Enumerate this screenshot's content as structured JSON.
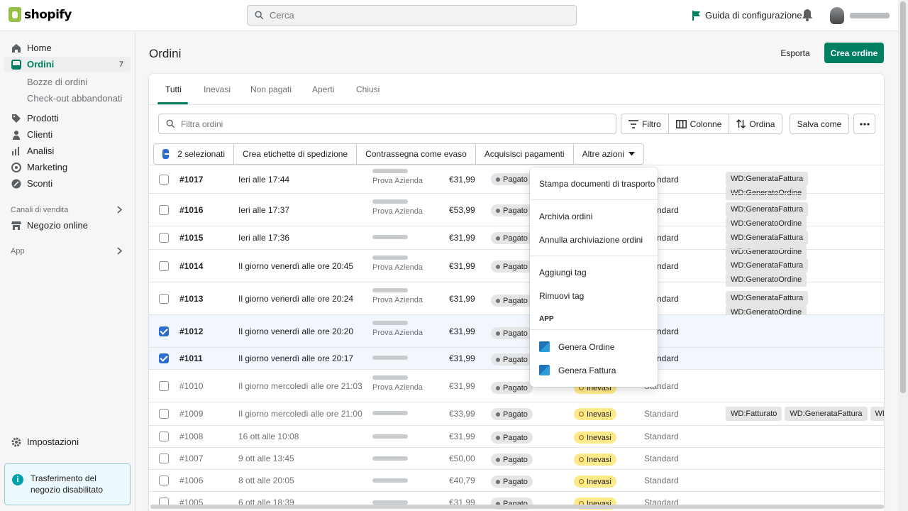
{
  "app": {
    "logo": "shopify"
  },
  "topbar": {
    "search_placeholder": "Cerca",
    "setup_guide": "Guida di configurazione"
  },
  "sidebar": {
    "items": [
      {
        "label": "Home",
        "icon": "home-icon"
      },
      {
        "label": "Ordini",
        "icon": "orders-icon",
        "count": "7"
      },
      {
        "label": "Prodotti",
        "icon": "tag-icon"
      },
      {
        "label": "Clienti",
        "icon": "person-icon"
      },
      {
        "label": "Analisi",
        "icon": "analytics-icon"
      },
      {
        "label": "Marketing",
        "icon": "target-icon"
      },
      {
        "label": "Sconti",
        "icon": "discount-icon"
      }
    ],
    "subitems": [
      "Bozze di ordini",
      "Check-out abbandonati"
    ],
    "sales_channels": "Canali di vendita",
    "online_store": "Negozio online",
    "apps": "App",
    "settings": "Impostazioni",
    "transfer_notice": "Trasferimento del negozio disabilitato"
  },
  "page": {
    "title": "Ordini",
    "export": "Esporta",
    "create": "Crea ordine"
  },
  "tabs": [
    "Tutti",
    "Inevasi",
    "Non pagati",
    "Aperti",
    "Chiusi"
  ],
  "toolbar": {
    "filter_placeholder": "Filtra ordini",
    "filter": "Filtro",
    "columns": "Colonne",
    "sort": "Ordina",
    "save_as": "Salva come"
  },
  "bulk": {
    "selected": "2 selezionati",
    "labels": "Crea etichette di spedizione",
    "mark_fulfilled": "Contrassegna come evaso",
    "capture": "Acquisisci pagamenti",
    "more": "Altre azioni"
  },
  "dropdown": {
    "print": "Stampa documenti di trasporto",
    "archive": "Archivia ordini",
    "unarchive": "Annulla archiviazione ordini",
    "add_tag": "Aggiungi tag",
    "remove_tag": "Rimuovi tag",
    "app_section": "APP",
    "gen_order": "Genera Ordine",
    "gen_invoice": "Genera Fattura"
  },
  "orders": [
    {
      "id": "#1017",
      "date": "Ieri alle 17:44",
      "company": "Prova Azienda",
      "total": "€31,99",
      "payment": "Pagato",
      "fulfillment": "",
      "delivery": "Standard",
      "tags": [
        "WD:GenerataFattura",
        "WD:GeneratoOrdine"
      ]
    },
    {
      "id": "#1016",
      "date": "Ieri alle 17:37",
      "company": "Prova Azienda",
      "total": "€53,99",
      "payment": "Pagato",
      "fulfillment": "",
      "delivery": "Standard",
      "tags": [
        "WD:GenerataFattura",
        "WD:GeneratoOrdine"
      ]
    },
    {
      "id": "#1015",
      "date": "Ieri alle 17:36",
      "company": "",
      "total": "€31,99",
      "payment": "Pagato",
      "fulfillment": "",
      "delivery": "Standard",
      "tags": [
        "WD:GenerataFattura",
        "WD:GeneratoOrdine"
      ]
    },
    {
      "id": "#1014",
      "date": "Il giorno venerdì alle ore 20:45",
      "company": "Prova Azienda",
      "total": "€31,99",
      "payment": "Pagato",
      "fulfillment": "",
      "delivery": "Standard",
      "tags": [
        "WD:GenerataFattura",
        "WD:GeneratoOrdine"
      ]
    },
    {
      "id": "#1013",
      "date": "Il giorno venerdì alle ore 20:24",
      "company": "Prova Azienda",
      "total": "€31,99",
      "payment": "Pagato",
      "fulfillment": "",
      "delivery": "Standard",
      "tags": [
        "WD:GenerataFattura",
        "WD:GeneratoOrdine"
      ]
    },
    {
      "id": "#1012",
      "date": "Il giorno venerdì alle ore 20:20",
      "company": "Prova Azienda",
      "total": "€31,99",
      "payment": "Pagato",
      "fulfillment": "",
      "delivery": "Standard",
      "tags": []
    },
    {
      "id": "#1011",
      "date": "Il giorno venerdì alle ore 20:17",
      "company": "",
      "total": "€31,99",
      "payment": "Pagato",
      "fulfillment": "",
      "delivery": "Standard",
      "tags": []
    },
    {
      "id": "#1010",
      "date": "Il giorno mercoledì alle ore 21:03",
      "company": "Prova Azienda",
      "total": "€31,99",
      "payment": "Pagato",
      "fulfillment": "Inevasi",
      "delivery": "Standard",
      "tags": []
    },
    {
      "id": "#1009",
      "date": "Il giorno mercoledì alle ore 21:00",
      "company": "",
      "total": "€33,99",
      "payment": "Pagato",
      "fulfillment": "Inevasi",
      "delivery": "Standard",
      "tags": [
        "WD:Fatturato",
        "WD:GenerataFattura",
        "WD:Gener"
      ]
    },
    {
      "id": "#1008",
      "date": "16 ott alle 10:08",
      "company": "",
      "total": "€31,99",
      "payment": "Pagato",
      "fulfillment": "Inevasi",
      "delivery": "Standard",
      "tags": []
    },
    {
      "id": "#1007",
      "date": "9 ott alle 13:45",
      "company": "",
      "total": "€50,00",
      "payment": "Pagato",
      "fulfillment": "Inevasi",
      "delivery": "Standard",
      "tags": []
    },
    {
      "id": "#1006",
      "date": "8 ott alle 20:05",
      "company": "",
      "total": "€40,79",
      "payment": "Pagato",
      "fulfillment": "Inevasi",
      "delivery": "Standard",
      "tags": []
    },
    {
      "id": "#1005",
      "date": "6 ott alle 18:39",
      "company": "",
      "total": "€31,99",
      "payment": "Pagato",
      "fulfillment": "Inevasi",
      "delivery": "Standard",
      "tags": []
    }
  ],
  "colors": {
    "brand": "#008060",
    "selected_row": "#f2f7fe",
    "checkbox": "#2c6ecb",
    "unfulfilled": "#ffea8a"
  }
}
